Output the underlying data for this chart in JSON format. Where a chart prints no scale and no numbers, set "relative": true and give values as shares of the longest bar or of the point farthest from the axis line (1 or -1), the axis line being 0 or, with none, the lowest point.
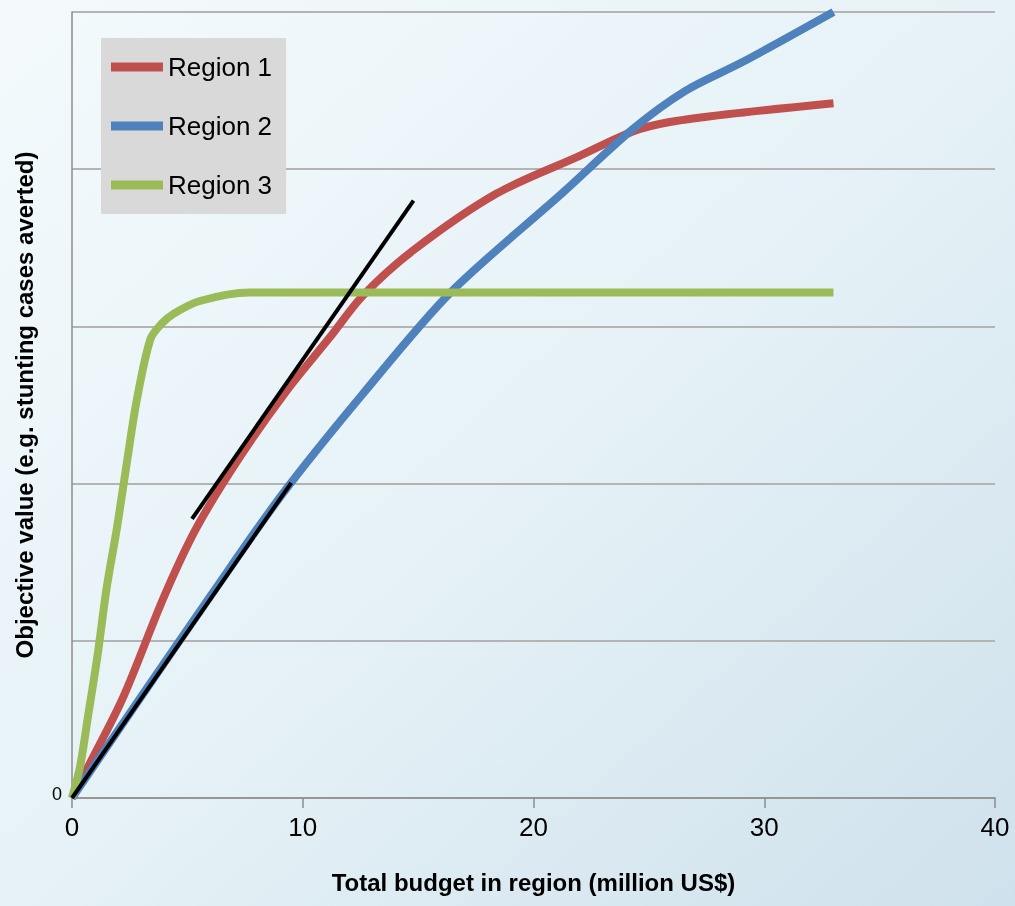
{
  "chart_data": {
    "type": "line",
    "xlabel": "Total budget in region (million US$)",
    "ylabel": "Objective value (e.g. stunting cases averted)",
    "relative": true,
    "xlim": [
      0,
      40
    ],
    "xticks": [
      0,
      10,
      20,
      30,
      40
    ],
    "grid": "y",
    "legend": "top left",
    "marker": "none",
    "line_style": "solid",
    "annotations": [
      {
        "text": "0",
        "x": 0,
        "y": 0
      }
    ],
    "series": [
      {
        "name": "Region 1",
        "color": "#c0504d",
        "x": [
          0,
          0.7,
          2.2,
          4.0,
          5.4,
          7.3,
          9.3,
          11.2,
          12.6,
          14.8,
          18.4,
          22.0,
          24.3,
          25.9,
          28.4,
          33
        ],
        "values": [
          0,
          0.04,
          0.127,
          0.257,
          0.344,
          0.435,
          0.518,
          0.587,
          0.639,
          0.697,
          0.769,
          0.817,
          0.848,
          0.86,
          0.87,
          0.884
        ]
      },
      {
        "name": "Region 2",
        "color": "#4f81bd",
        "x": [
          0,
          3,
          6,
          9.1,
          12.6,
          16.4,
          21.3,
          24.3,
          26.6,
          29.1,
          33
        ],
        "values": [
          0,
          0.129,
          0.257,
          0.386,
          0.514,
          0.643,
          0.771,
          0.851,
          0.9,
          0.937,
          1
        ]
      },
      {
        "name": "Region 3",
        "color": "#9bbb59",
        "x": [
          0,
          0.35,
          0.7,
          1.1,
          1.5,
          1.95,
          2.4,
          2.8,
          3.4,
          3.9,
          4.4,
          5.5,
          7.7,
          33
        ],
        "values": [
          0,
          0.04,
          0.105,
          0.18,
          0.267,
          0.344,
          0.431,
          0.505,
          0.584,
          0.604,
          0.616,
          0.632,
          0.643,
          0.643
        ]
      },
      {
        "color": "#000000",
        "x": [
          5.2,
          14.8
        ],
        "values": [
          0.355,
          0.76
        ]
      },
      {
        "color": "#000000",
        "x": [
          0,
          9.5
        ],
        "values": [
          0,
          0.401
        ]
      }
    ]
  }
}
